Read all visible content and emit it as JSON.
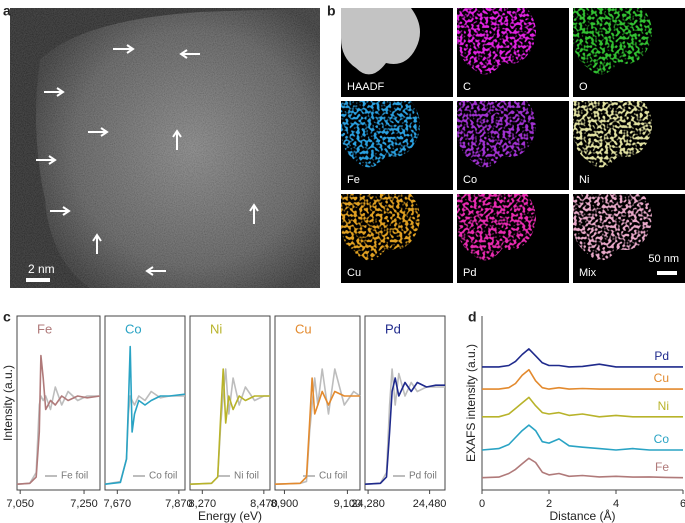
{
  "panel_labels": [
    "a",
    "b",
    "c",
    "d"
  ],
  "image_a": {
    "scale_bar": "2 nm"
  },
  "maps": {
    "labels": [
      "HAADF",
      "C",
      "O",
      "Fe",
      "Co",
      "Ni",
      "Cu",
      "Pd",
      "Mix"
    ],
    "colors": [
      "#d8d8d8",
      "#e020e0",
      "#30c030",
      "#2aa0e0",
      "#a030d0",
      "#e0e0a0",
      "#e0a020",
      "#e82ab0",
      "#e8a8c8"
    ],
    "scale_bar": "50 nm"
  },
  "chart_data": [
    {
      "type": "line",
      "ylabel": "Intensity (a.u.)",
      "xlim": [
        7040,
        7300
      ],
      "ylim": [
        0,
        1.6
      ],
      "xticks": [
        {
          "value": 7050,
          "label": "7,050"
        },
        {
          "value": 7250,
          "label": "7,250"
        }
      ],
      "x": [
        7040,
        7080,
        7100,
        7110,
        7115,
        7122,
        7130,
        7145,
        7160,
        7180,
        7200,
        7230,
        7260,
        7300
      ],
      "series": [
        {
          "name": "Fe",
          "color": "#b07a7a",
          "values": [
            0.02,
            0.03,
            0.1,
            0.6,
            1.45,
            1.2,
            0.85,
            0.95,
            0.9,
            1.0,
            0.95,
            1.0,
            0.98,
            1.0
          ]
        },
        {
          "name": "Fe foil",
          "color": "#bdbdbd",
          "values": [
            0.02,
            0.03,
            0.15,
            0.9,
            1.0,
            0.95,
            1.0,
            0.85,
            1.1,
            0.9,
            1.05,
            0.95,
            1.0,
            1.0
          ]
        }
      ]
    },
    {
      "type": "line",
      "xlim": [
        7630,
        7890
      ],
      "ylim": [
        0,
        1.6
      ],
      "xticks": [
        {
          "value": 7670,
          "label": "7,670"
        },
        {
          "value": 7870,
          "label": "7,870"
        }
      ],
      "x": [
        7630,
        7680,
        7700,
        7706,
        7712,
        7718,
        7726,
        7740,
        7760,
        7780,
        7810,
        7840,
        7890
      ],
      "series": [
        {
          "name": "Co",
          "color": "#29a3c4",
          "values": [
            0.02,
            0.04,
            0.3,
            0.9,
            1.55,
            0.6,
            0.8,
            0.95,
            0.9,
            0.95,
            1.0,
            1.0,
            1.02
          ]
        },
        {
          "name": "Co foil",
          "color": "#bdbdbd",
          "values": [
            0.02,
            0.05,
            0.3,
            0.8,
            1.0,
            0.95,
            0.9,
            1.0,
            0.95,
            1.05,
            0.98,
            1.0,
            1.0
          ]
        }
      ]
    },
    {
      "type": "line",
      "xlabel": "Energy (eV)",
      "xlim": [
        8230,
        8490
      ],
      "ylim": [
        0,
        1.6
      ],
      "xticks": [
        {
          "value": 8270,
          "label": "8,270"
        },
        {
          "value": 8470,
          "label": "8,470"
        }
      ],
      "x": [
        8230,
        8300,
        8320,
        8330,
        8338,
        8346,
        8356,
        8370,
        8390,
        8410,
        8440,
        8470,
        8490
      ],
      "series": [
        {
          "name": "Ni",
          "color": "#b8b32a",
          "values": [
            0.02,
            0.03,
            0.1,
            0.8,
            1.3,
            0.7,
            1.0,
            0.85,
            1.0,
            0.95,
            1.0,
            1.0,
            1.0
          ]
        },
        {
          "name": "Ni foil",
          "color": "#bdbdbd",
          "values": [
            0.02,
            0.03,
            0.1,
            0.7,
            1.0,
            1.3,
            0.8,
            1.2,
            0.9,
            1.1,
            0.95,
            1.0,
            1.0
          ]
        }
      ]
    },
    {
      "type": "line",
      "xlim": [
        8870,
        9140
      ],
      "ylim": [
        0,
        1.6
      ],
      "xticks": [
        {
          "value": 8900,
          "label": "8,900"
        },
        {
          "value": 9100,
          "label": "9,100"
        }
      ],
      "x": [
        8870,
        8950,
        8970,
        8980,
        8988,
        8996,
        9006,
        9020,
        9040,
        9060,
        9090,
        9120,
        9140
      ],
      "series": [
        {
          "name": "Cu",
          "color": "#e38a2e",
          "values": [
            0.02,
            0.03,
            0.1,
            0.7,
            1.2,
            0.8,
            0.9,
            1.05,
            0.9,
            1.05,
            1.0,
            1.0,
            1.0
          ]
        },
        {
          "name": "Cu foil",
          "color": "#bdbdbd",
          "values": [
            0.02,
            0.03,
            0.05,
            0.6,
            0.9,
            1.2,
            0.9,
            1.3,
            0.8,
            1.3,
            0.9,
            1.05,
            1.0
          ]
        }
      ]
    },
    {
      "type": "line",
      "xlim": [
        24270,
        24530
      ],
      "ylim": [
        0,
        1.6
      ],
      "xticks": [
        {
          "value": 24280,
          "label": "24,280"
        },
        {
          "value": 24480,
          "label": "24,480"
        }
      ],
      "x": [
        24270,
        24320,
        24340,
        24350,
        24358,
        24368,
        24380,
        24400,
        24420,
        24440,
        24470,
        24500,
        24530
      ],
      "series": [
        {
          "name": "Pd",
          "color": "#1f2a8c",
          "values": [
            0.02,
            0.03,
            0.1,
            0.6,
            1.05,
            1.2,
            1.0,
            1.15,
            1.05,
            1.15,
            1.1,
            1.12,
            1.12
          ]
        },
        {
          "name": "Pd foil",
          "color": "#bdbdbd",
          "values": [
            0.02,
            0.03,
            0.15,
            0.9,
            1.3,
            0.9,
            1.25,
            1.0,
            1.15,
            1.05,
            1.1,
            1.1,
            1.1
          ]
        }
      ]
    },
    {
      "type": "line",
      "xlabel": "Distance (Å)",
      "ylabel": "EXAFS intensity (a.u.)",
      "xlim": [
        0,
        6
      ],
      "ylim": [
        0,
        5.2
      ],
      "xticks": [
        0,
        2,
        4,
        6
      ],
      "x": [
        0,
        0.5,
        0.8,
        1.0,
        1.2,
        1.4,
        1.6,
        1.8,
        2.0,
        2.3,
        2.6,
        3.0,
        3.5,
        4,
        4.5,
        5,
        5.5,
        6
      ],
      "series": [
        {
          "name": "Pd",
          "color": "#1f2a8c",
          "values": [
            4.3,
            4.3,
            4.35,
            4.5,
            4.75,
            4.95,
            4.7,
            4.45,
            4.35,
            4.35,
            4.3,
            4.32,
            4.4,
            4.3,
            4.3,
            4.3,
            4.3,
            4.3
          ]
        },
        {
          "name": "Cu",
          "color": "#e38a2e",
          "values": [
            3.5,
            3.5,
            3.55,
            3.7,
            4.0,
            4.2,
            3.8,
            3.55,
            3.5,
            3.55,
            3.5,
            3.52,
            3.5,
            3.5,
            3.5,
            3.5,
            3.5,
            3.5
          ]
        },
        {
          "name": "Ni",
          "color": "#b8b32a",
          "values": [
            2.5,
            2.5,
            2.6,
            2.8,
            3.0,
            3.2,
            2.9,
            2.65,
            2.6,
            2.65,
            2.55,
            2.6,
            2.5,
            2.55,
            2.5,
            2.5,
            2.5,
            2.5
          ]
        },
        {
          "name": "Co",
          "color": "#29a3c4",
          "values": [
            1.3,
            1.35,
            1.5,
            1.75,
            2.0,
            2.2,
            2.0,
            1.6,
            1.55,
            1.7,
            1.45,
            1.4,
            1.35,
            1.3,
            1.35,
            1.3,
            1.3,
            1.3
          ]
        },
        {
          "name": "Fe",
          "color": "#b07a7a",
          "values": [
            0.3,
            0.32,
            0.45,
            0.6,
            0.8,
            1.0,
            0.85,
            0.5,
            0.4,
            0.45,
            0.35,
            0.38,
            0.33,
            0.35,
            0.32,
            0.33,
            0.31,
            0.3
          ]
        }
      ]
    }
  ]
}
